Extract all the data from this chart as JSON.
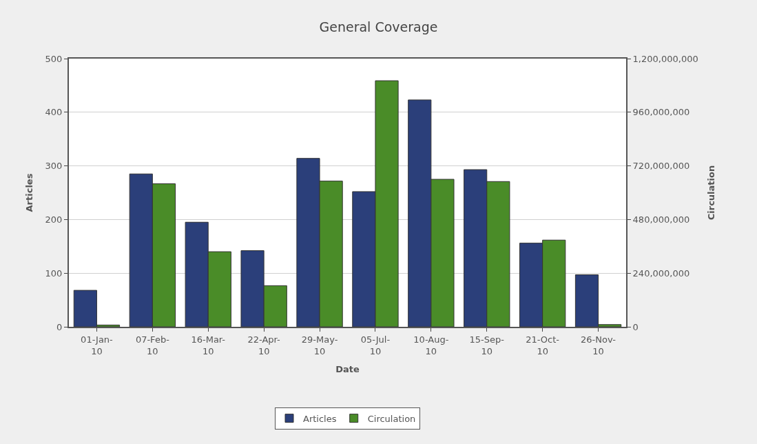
{
  "chart_data": {
    "type": "bar",
    "title": "General Coverage",
    "xlabel": "Date",
    "ylabel": "Articles",
    "y2label": "Circulation",
    "categories": [
      "01-Jan-10",
      "07-Feb-10",
      "16-Mar-10",
      "22-Apr-10",
      "29-May-10",
      "05-Jul-10",
      "10-Aug-10",
      "15-Sep-10",
      "21-Oct-10",
      "26-Nov-10"
    ],
    "series": [
      {
        "name": "Articles",
        "color": "#2b3f7a",
        "values": [
          68,
          285,
          195,
          142,
          314,
          252,
          423,
          293,
          156,
          97
        ]
      },
      {
        "name": "Circulation",
        "color": "#4a8c28",
        "axis": "y2",
        "values": [
          8000000,
          640000000,
          336000000,
          184000000,
          652000000,
          1101000000,
          660000000,
          650000000,
          388000000,
          10000000
        ]
      }
    ],
    "ylim": [
      0,
      500
    ],
    "yticks": [
      0,
      100,
      200,
      300,
      400,
      500
    ],
    "y2lim": [
      0,
      1200000000
    ],
    "y2ticks": [
      {
        "value": 0,
        "label": "0"
      },
      {
        "value": 240000000,
        "label": "240,000,000"
      },
      {
        "value": 480000000,
        "label": "480,000,000"
      },
      {
        "value": 720000000,
        "label": "720,000,000"
      },
      {
        "value": 960000000,
        "label": "960,000,000"
      },
      {
        "value": 1200000000,
        "label": "1,200,000,000"
      }
    ],
    "grid": "y",
    "legend": "bottom"
  }
}
